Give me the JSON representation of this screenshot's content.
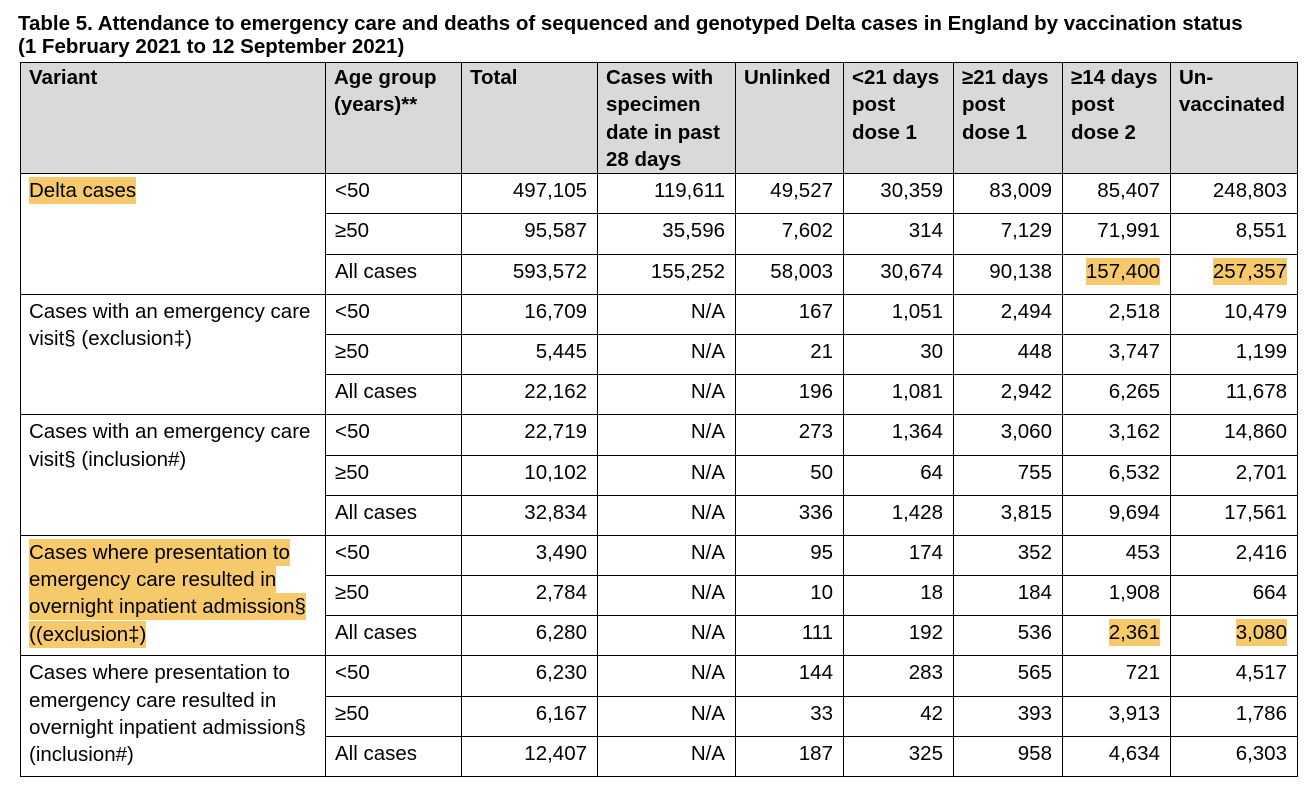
{
  "title": {
    "line1": "Table 5. Attendance to emergency care and deaths of sequenced and genotyped Delta cases in England by vaccination status",
    "line2": "(1 February 2021 to 12 September 2021)"
  },
  "colors": {
    "header_bg": "#d9d9d9",
    "highlight": "#f6c96a",
    "border": "#000000"
  },
  "columns": [
    "Variant",
    "Age group (years)**",
    "Total",
    "Cases with specimen date in past 28 days",
    "Unlinked",
    "<21 days post dose 1",
    "≥21 days post dose 1",
    "≥14 days post dose 2",
    "Un-vaccinated"
  ],
  "groups": [
    {
      "variant": "Delta cases",
      "variant_highlighted": true,
      "rows": [
        {
          "age": "<50",
          "values": [
            "497,105",
            "119,611",
            "49,527",
            "30,359",
            "83,009",
            "85,407",
            "248,803"
          ],
          "highlighted_values": []
        },
        {
          "age": "≥50",
          "values": [
            "95,587",
            "35,596",
            "7,602",
            "314",
            "7,129",
            "71,991",
            "8,551"
          ],
          "highlighted_values": []
        },
        {
          "age": "All cases",
          "values": [
            "593,572",
            "155,252",
            "58,003",
            "30,674",
            "90,138",
            "157,400",
            "257,357"
          ],
          "highlighted_values": [
            5,
            6
          ]
        }
      ]
    },
    {
      "variant": "Cases with an emergency care visit§ (exclusion‡)",
      "variant_highlighted": false,
      "rows": [
        {
          "age": "<50",
          "values": [
            "16,709",
            "N/A",
            "167",
            "1,051",
            "2,494",
            "2,518",
            "10,479"
          ],
          "highlighted_values": []
        },
        {
          "age": "≥50",
          "values": [
            "5,445",
            "N/A",
            "21",
            "30",
            "448",
            "3,747",
            "1,199"
          ],
          "highlighted_values": []
        },
        {
          "age": "All cases",
          "values": [
            "22,162",
            "N/A",
            "196",
            "1,081",
            "2,942",
            "6,265",
            "11,678"
          ],
          "highlighted_values": []
        }
      ]
    },
    {
      "variant": "Cases with an emergency care visit§ (inclusion#)",
      "variant_highlighted": false,
      "rows": [
        {
          "age": "<50",
          "values": [
            "22,719",
            "N/A",
            "273",
            "1,364",
            "3,060",
            "3,162",
            "14,860"
          ],
          "highlighted_values": []
        },
        {
          "age": "≥50",
          "values": [
            "10,102",
            "N/A",
            "50",
            "64",
            "755",
            "6,532",
            "2,701"
          ],
          "highlighted_values": []
        },
        {
          "age": "All cases",
          "values": [
            "32,834",
            "N/A",
            "336",
            "1,428",
            "3,815",
            "9,694",
            "17,561"
          ],
          "highlighted_values": []
        }
      ]
    },
    {
      "variant": "Cases where presentation to emergency care resulted in overnight inpatient admission§ ((exclusion‡)",
      "variant_highlighted": true,
      "rows": [
        {
          "age": "<50",
          "values": [
            "3,490",
            "N/A",
            "95",
            "174",
            "352",
            "453",
            "2,416"
          ],
          "highlighted_values": []
        },
        {
          "age": "≥50",
          "values": [
            "2,784",
            "N/A",
            "10",
            "18",
            "184",
            "1,908",
            "664"
          ],
          "highlighted_values": []
        },
        {
          "age": "All cases",
          "values": [
            "6,280",
            "N/A",
            "111",
            "192",
            "536",
            "2,361",
            "3,080"
          ],
          "highlighted_values": [
            5,
            6
          ]
        }
      ]
    },
    {
      "variant": "Cases where presentation to emergency care resulted in overnight inpatient admission§ (inclusion#)",
      "variant_highlighted": false,
      "rows": [
        {
          "age": "<50",
          "values": [
            "6,230",
            "N/A",
            "144",
            "283",
            "565",
            "721",
            "4,517"
          ],
          "highlighted_values": []
        },
        {
          "age": "≥50",
          "values": [
            "6,167",
            "N/A",
            "33",
            "42",
            "393",
            "3,913",
            "1,786"
          ],
          "highlighted_values": []
        },
        {
          "age": "All cases",
          "values": [
            "12,407",
            "N/A",
            "187",
            "325",
            "958",
            "4,634",
            "6,303"
          ],
          "highlighted_values": []
        }
      ]
    }
  ]
}
